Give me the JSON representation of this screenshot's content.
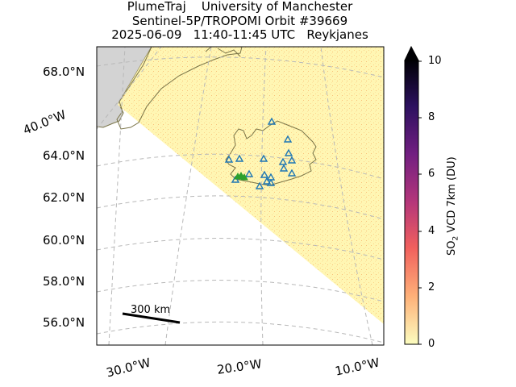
{
  "header": {
    "line1": "PlumeTraj    University of Manchester",
    "line2": "Sentinel-5P/TROPOMI Orbit #39669",
    "line3": "2025-06-09   11:40-11:45 UTC   Reykjanes"
  },
  "lat_labels": [
    "68.0°N",
    "64.0°N",
    "62.0°N",
    "60.0°N",
    "58.0°N",
    "56.0°N"
  ],
  "lon_labels": [
    "40.0°W",
    "30.0°W",
    "20.0°W",
    "10.0°W"
  ],
  "scalebar": {
    "label": "300 km"
  },
  "colorbar": {
    "ticks": [
      "10",
      "8",
      "6",
      "4",
      "2",
      "0"
    ],
    "min": 0,
    "max": 10,
    "extend": "max",
    "label_pre": "SO",
    "label_sub": "2",
    "label_post": " VCD 7km (DU)",
    "colormap": [
      "#fcfdbf",
      "#feb078",
      "#f1605d",
      "#b5367a",
      "#721f81",
      "#2c115f",
      "#000004"
    ]
  },
  "colors": {
    "swath": "#fff6b3",
    "land_greenland": "#d3d3d3",
    "coast": "#7a7448",
    "volcano_marker": "#1f77b4",
    "source_marker": "#2ca02c",
    "grid": "#b8b8b8"
  }
}
